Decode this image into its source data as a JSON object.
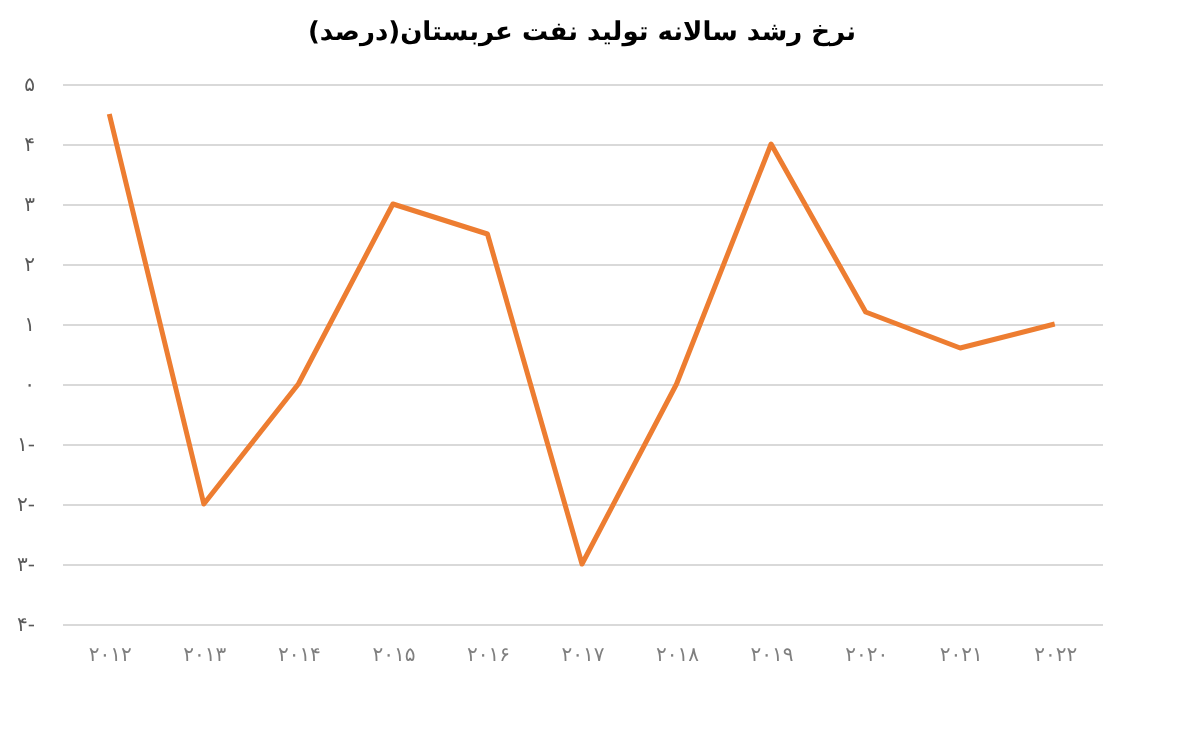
{
  "chart_data": {
    "type": "line",
    "title": "نرخ رشد سالانه تولید نفت عربستان(درصد)",
    "categories": [
      "۲۰۱۲",
      "۲۰۱۳",
      "۲۰۱۴",
      "۲۰۱۵",
      "۲۰۱۶",
      "۲۰۱۷",
      "۲۰۱۸",
      "۲۰۱۹",
      "۲۰۲۰",
      "۲۰۲۱",
      "۲۰۲۲"
    ],
    "series": [
      {
        "color": "#ed7d31",
        "values": [
          4.5,
          -2,
          0,
          3,
          2.5,
          -3,
          0,
          4,
          1.2,
          0.6,
          1
        ]
      }
    ],
    "ylim": [
      -4,
      5
    ],
    "yticks": [
      {
        "value": 5,
        "label": "۵"
      },
      {
        "value": 4,
        "label": "۴"
      },
      {
        "value": 3,
        "label": "۳"
      },
      {
        "value": 2,
        "label": "۲"
      },
      {
        "value": 1,
        "label": "۱"
      },
      {
        "value": 0,
        "label": "۰"
      },
      {
        "value": -1,
        "label": "۱-"
      },
      {
        "value": -2,
        "label": "۲-"
      },
      {
        "value": -3,
        "label": "۳-"
      },
      {
        "value": -4,
        "label": "۴-"
      }
    ],
    "grid": "y",
    "marker": "none",
    "line_style": "solid"
  }
}
